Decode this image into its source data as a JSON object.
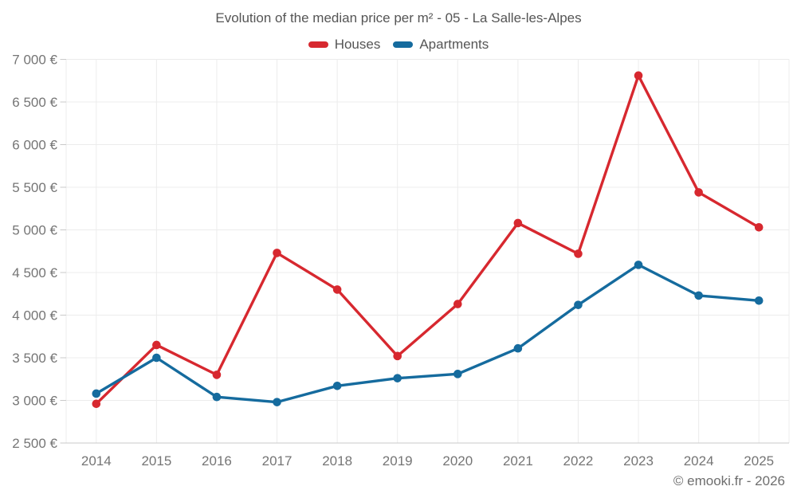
{
  "footer": {
    "credit": "© emooki.fr - 2026"
  },
  "palette": {
    "grid": "#ececec",
    "axis": "#c9c9c9",
    "title_text": "#555555",
    "axis_text": "#757575"
  },
  "chart_data": {
    "type": "line",
    "title": "Evolution of the median price per m² - 05 - La Salle-les-Alpes",
    "xlabel": "",
    "ylabel": "",
    "x": [
      "2014",
      "2015",
      "2016",
      "2017",
      "2018",
      "2019",
      "2020",
      "2021",
      "2022",
      "2023",
      "2024",
      "2025"
    ],
    "series": [
      {
        "name": "Houses",
        "color": "#d7282f",
        "values": [
          2960,
          3650,
          3300,
          4730,
          4300,
          3520,
          4130,
          5080,
          4720,
          6810,
          5440,
          5030
        ]
      },
      {
        "name": "Apartments",
        "color": "#156b9e",
        "values": [
          3080,
          3500,
          3040,
          2980,
          3170,
          3260,
          3310,
          3610,
          4120,
          4590,
          4230,
          4170
        ]
      }
    ],
    "ylim": [
      2500,
      7000
    ],
    "yticks": [
      {
        "value": 2500,
        "label": "2 500 €"
      },
      {
        "value": 3000,
        "label": "3 000 €"
      },
      {
        "value": 3500,
        "label": "3 500 €"
      },
      {
        "value": 4000,
        "label": "4 000 €"
      },
      {
        "value": 4500,
        "label": "4 500 €"
      },
      {
        "value": 5000,
        "label": "5 000 €"
      },
      {
        "value": 5500,
        "label": "5 500 €"
      },
      {
        "value": 6000,
        "label": "6 000 €"
      },
      {
        "value": 6500,
        "label": "6 500 €"
      },
      {
        "value": 7000,
        "label": "7 000 €"
      }
    ],
    "grid": true,
    "legend_position": "top"
  }
}
